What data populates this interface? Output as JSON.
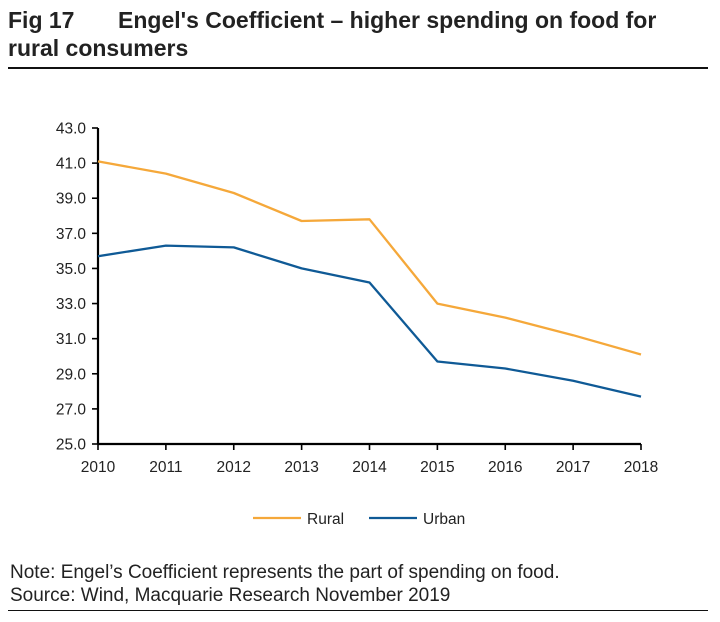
{
  "header": {
    "fig_label": "Fig 17",
    "title": "Engel's Coefficient – higher spending on food for rural consumers"
  },
  "footer": {
    "note": "Note: Engel’s Coefficient represents the part of spending on food.",
    "source": "Source: Wind, Macquarie Research November 2019"
  },
  "chart_data": {
    "type": "line",
    "title": "Engel's Coefficient – higher spending on food for rural consumers",
    "xlabel": "",
    "ylabel": "",
    "x": [
      "2010",
      "2011",
      "2012",
      "2013",
      "2014",
      "2015",
      "2016",
      "2017",
      "2018"
    ],
    "ylim": [
      25.0,
      43.0
    ],
    "yticks": [
      "25.0",
      "27.0",
      "29.0",
      "31.0",
      "33.0",
      "35.0",
      "37.0",
      "39.0",
      "41.0",
      "43.0"
    ],
    "grid": false,
    "legend_position": "bottom-center",
    "series": [
      {
        "name": "Rural",
        "color": "#F5A83A",
        "values": [
          41.1,
          40.4,
          39.3,
          37.7,
          37.8,
          33.0,
          32.2,
          31.2,
          30.1
        ]
      },
      {
        "name": "Urban",
        "color": "#0F5A96",
        "values": [
          35.7,
          36.3,
          36.2,
          35.0,
          34.2,
          29.7,
          29.3,
          28.6,
          27.7
        ]
      }
    ]
  }
}
